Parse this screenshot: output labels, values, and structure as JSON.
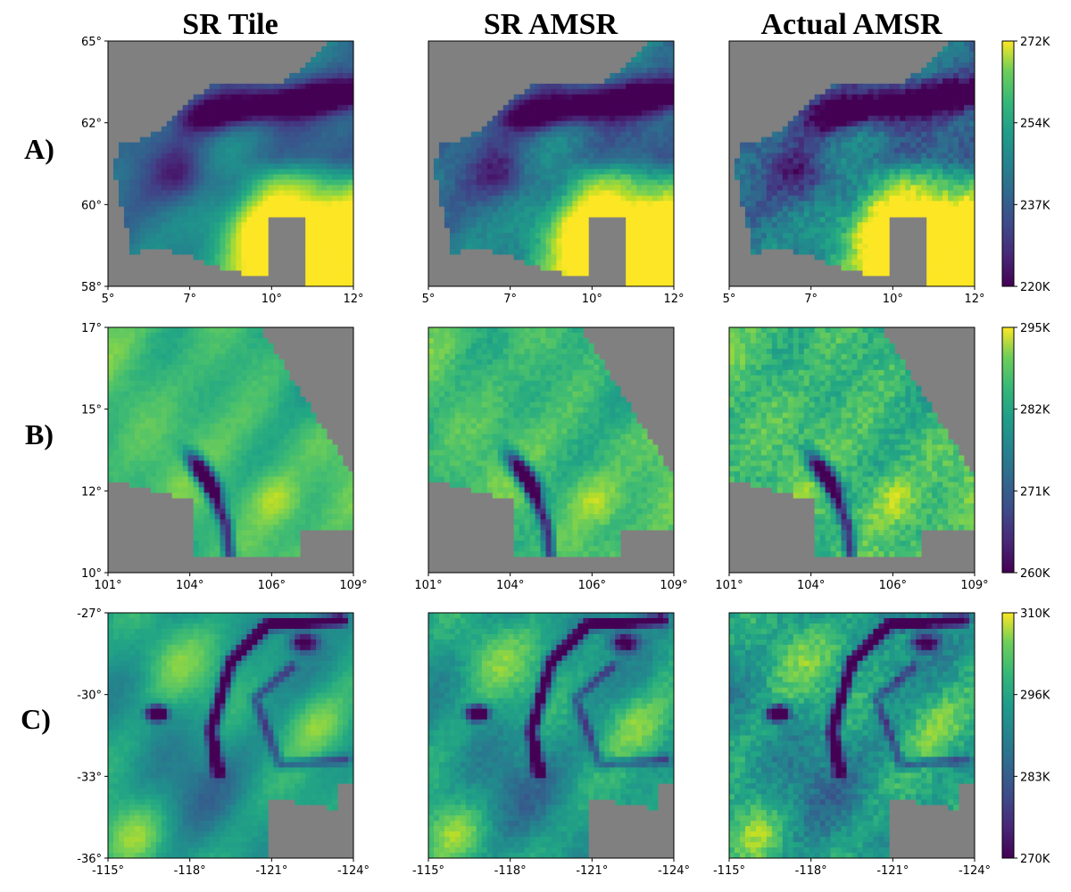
{
  "chart_data": {
    "type": "heatmap",
    "column_titles": [
      "SR Tile",
      "SR AMSR",
      "Actual AMSR"
    ],
    "rows": [
      {
        "label": "A)",
        "region": "A",
        "x_ticks": [
          "5°",
          "7°",
          "10°",
          "12°"
        ],
        "y_ticks": [
          "65°",
          "62°",
          "60°",
          "58°"
        ],
        "x_range": [
          5,
          12
        ],
        "y_range": [
          58,
          65
        ],
        "colorbar": {
          "min": 220,
          "max": 272,
          "ticks": [
            "272K",
            "254K",
            "237K",
            "220K"
          ]
        }
      },
      {
        "label": "B)",
        "region": "B",
        "x_ticks": [
          "101°",
          "104°",
          "106°",
          "109°"
        ],
        "y_ticks": [
          "17°",
          "15°",
          "12°",
          "10°"
        ],
        "x_range": [
          101,
          109
        ],
        "y_range": [
          10,
          17
        ],
        "colorbar": {
          "min": 260,
          "max": 295,
          "ticks": [
            "295K",
            "282K",
            "271K",
            "260K"
          ]
        }
      },
      {
        "label": "C)",
        "region": "C",
        "x_ticks": [
          "-115°",
          "-118°",
          "-121°",
          "-124°"
        ],
        "y_ticks": [
          "-27°",
          "-30°",
          "-33°",
          "-36°"
        ],
        "x_range": [
          -115,
          -124
        ],
        "y_range": [
          -36,
          -27
        ],
        "colorbar": {
          "min": 270,
          "max": 310,
          "ticks": [
            "310K",
            "296K",
            "283K",
            "270K"
          ]
        }
      }
    ],
    "colormap": "viridis",
    "mask_color": "#808080"
  }
}
